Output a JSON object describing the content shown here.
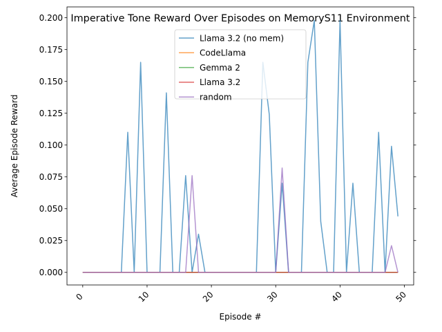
{
  "chart_data": {
    "type": "line",
    "title": "Imperative Tone Reward Over Episodes on MemoryS11 Environment",
    "xlabel": "Episode #",
    "ylabel": "Average Episode Reward",
    "xlim": [
      -2.45,
      51.45
    ],
    "ylim": [
      -0.0099,
      0.2085
    ],
    "xticks": [
      0,
      10,
      20,
      30,
      40,
      50
    ],
    "yticks": [
      0.0,
      0.025,
      0.05,
      0.075,
      0.1,
      0.125,
      0.15,
      0.175,
      0.2
    ],
    "ytick_labels": [
      "0.000",
      "0.025",
      "0.050",
      "0.075",
      "0.100",
      "0.125",
      "0.150",
      "0.175",
      "0.200"
    ],
    "xtick_rotation": 45,
    "grid": false,
    "legend_position": "top-center",
    "x": [
      0,
      1,
      2,
      3,
      4,
      5,
      6,
      7,
      8,
      9,
      10,
      11,
      12,
      13,
      14,
      15,
      16,
      17,
      18,
      19,
      20,
      21,
      22,
      23,
      24,
      25,
      26,
      27,
      28,
      29,
      30,
      31,
      32,
      33,
      34,
      35,
      36,
      37,
      38,
      39,
      40,
      41,
      42,
      43,
      44,
      45,
      46,
      47,
      48,
      49
    ],
    "series": [
      {
        "name": "Llama 3.2 (no mem)",
        "color": "#1f77b4",
        "values": [
          0,
          0,
          0,
          0,
          0,
          0,
          0,
          0.11,
          0,
          0.165,
          0,
          0,
          0,
          0.141,
          0,
          0,
          0.076,
          0,
          0.03,
          0,
          0,
          0,
          0,
          0,
          0,
          0,
          0,
          0,
          0.165,
          0.124,
          0,
          0.07,
          0,
          0,
          0,
          0.165,
          0.198,
          0.04,
          0,
          0,
          0.198,
          0,
          0.07,
          0,
          0,
          0,
          0.11,
          0,
          0.099,
          0.044
        ]
      },
      {
        "name": "CodeLlama",
        "color": "#ff7f0e",
        "values": [
          0,
          0,
          0,
          0,
          0,
          0,
          0,
          0,
          0,
          0,
          0,
          0,
          0,
          0,
          0,
          0,
          0,
          0,
          0,
          0,
          0,
          0,
          0,
          0,
          0,
          0,
          0,
          0,
          0,
          0,
          0,
          0,
          0,
          0,
          0,
          0,
          0,
          0,
          0,
          0,
          0,
          0,
          0,
          0,
          0,
          0,
          0,
          0,
          0,
          0
        ]
      },
      {
        "name": "Gemma 2",
        "color": "#2ca02c",
        "values": [
          0,
          0,
          0,
          0,
          0,
          0,
          0,
          0,
          0,
          0,
          0,
          0,
          0,
          0,
          0,
          0,
          0,
          0,
          0,
          0,
          0,
          0,
          0,
          0,
          0,
          0,
          0,
          0,
          0,
          0,
          0,
          0,
          0,
          0,
          0,
          0,
          0,
          0,
          0,
          0,
          0,
          0,
          0,
          0,
          0,
          0,
          0,
          0,
          0,
          0
        ]
      },
      {
        "name": "Llama 3.2",
        "color": "#d62728",
        "values": [
          0,
          0,
          0,
          0,
          0,
          0,
          0,
          0,
          0,
          0,
          0,
          0,
          0,
          0,
          0,
          0,
          0,
          0,
          0,
          0,
          0,
          0,
          0,
          0,
          0,
          0,
          0,
          0,
          0,
          0,
          0,
          0,
          0,
          0,
          0,
          0,
          0,
          0,
          0,
          0,
          0,
          0,
          0,
          0,
          0,
          0,
          0,
          0,
          0,
          0
        ]
      },
      {
        "name": "random",
        "color": "#9467bd",
        "values": [
          0,
          0,
          0,
          0,
          0,
          0,
          0,
          0,
          0,
          0,
          0,
          0,
          0,
          0,
          0,
          0,
          0,
          0.076,
          0,
          0,
          0,
          0,
          0,
          0,
          0,
          0,
          0,
          0,
          0,
          0,
          0,
          0.082,
          0,
          0,
          0,
          0,
          0,
          0,
          0,
          0,
          0,
          0,
          0,
          0,
          0,
          0,
          0,
          0,
          0.021,
          0
        ]
      }
    ]
  }
}
